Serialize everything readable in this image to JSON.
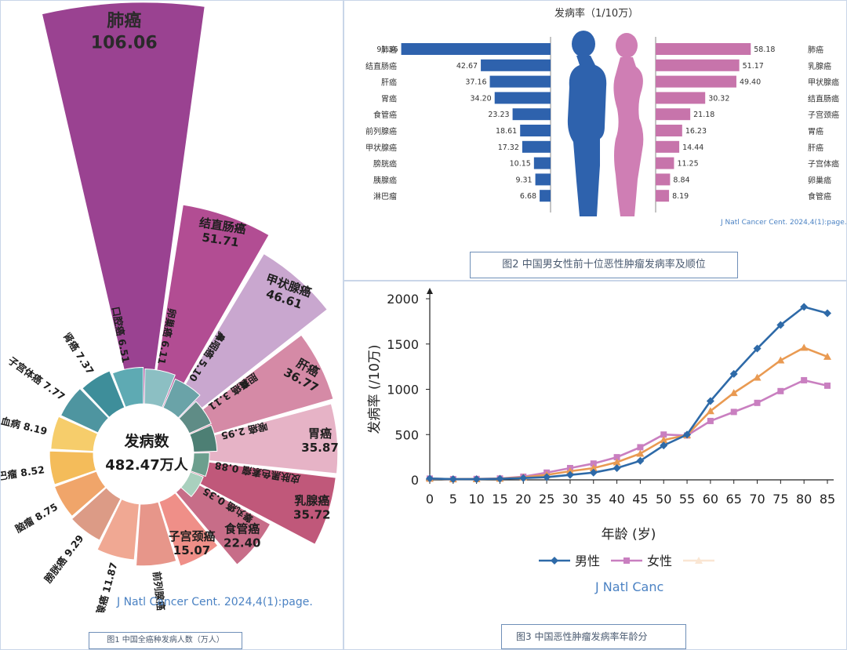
{
  "figure1": {
    "caption": "图1 中国全癌种发病人数（万人）",
    "source": "J Natl Cancer Cent. 2024,4(1):page.",
    "center_title": "发病数",
    "center_value": "482.47万人",
    "chart_data": {
      "type": "pie",
      "title": "",
      "unit": "万人",
      "categories": [
        "肺癌",
        "结直肠癌",
        "甲状腺癌",
        "肝癌",
        "胃癌",
        "乳腺癌",
        "食管癌",
        "子宫颈癌",
        "前列腺癌",
        "胰腺癌",
        "膀胱癌",
        "脑瘤",
        "淋巴瘤",
        "白血病",
        "子宫体癌",
        "肾癌",
        "口腔癌",
        "卵巢癌",
        "鼻咽癌",
        "胆囊癌",
        "喉癌",
        "皮肤黑色素瘤",
        "睾丸癌"
      ],
      "values": [
        106.06,
        51.71,
        46.61,
        36.77,
        35.87,
        35.72,
        22.4,
        15.07,
        13.42,
        11.87,
        9.29,
        8.75,
        8.52,
        8.19,
        7.77,
        7.37,
        6.51,
        6.11,
        5.1,
        3.11,
        2.95,
        0.88,
        0.35
      ],
      "value_labels": [
        "106.06",
        "51.71",
        "46.61",
        "36.77",
        "35.87",
        "35.72",
        "22.40",
        "15.07",
        "13.42",
        "11.87",
        "9.29",
        "8.75",
        "8.52",
        "8.19",
        "7.77",
        "7.37",
        "6.51",
        "6.11",
        "5.10",
        "3.11",
        "2.95",
        "0.88",
        "0.35"
      ],
      "colors": [
        "#9a4291",
        "#b24d93",
        "#c9a7cf",
        "#d58aa6",
        "#e6b3c6",
        "#c0587a",
        "#c76d88",
        "#ef8f88",
        "#e7968a",
        "#f0a893",
        "#dc9b86",
        "#f0a56a",
        "#f4bc5a",
        "#f6cd6b",
        "#4e95a0",
        "#3e8e9a",
        "#5eaab3",
        "#8cbfc3",
        "#6aa3a8",
        "#5f8c86",
        "#4d7f74",
        "#6c9f8e",
        "#a9d0be"
      ]
    }
  },
  "figure2": {
    "title": "发病率（1/10万）",
    "caption": "图2 中国男女性前十位恶性肿瘤发病率及顺位",
    "source": "J Natl Cancer Cent. 2024,4(1):page.",
    "chart_data": {
      "type": "bar",
      "title": "发病率（1/10万）",
      "xlim": [
        0,
        95
      ],
      "series": [
        {
          "name": "男性",
          "color": "#2e62ad",
          "categories": [
            "肺癌",
            "结直肠癌",
            "肝癌",
            "胃癌",
            "食管癌",
            "前列腺癌",
            "甲状腺癌",
            "膀胱癌",
            "胰腺癌",
            "淋巴瘤"
          ],
          "values": [
            91.36,
            42.67,
            37.16,
            34.2,
            23.23,
            18.61,
            17.32,
            10.15,
            9.31,
            6.68
          ],
          "value_labels": [
            "91.36",
            "42.67",
            "37.16",
            "34.20",
            "23.23",
            "18.61",
            "17.32",
            "10.15",
            "9.31",
            "6.68"
          ]
        },
        {
          "name": "女性",
          "color": "#c774ab",
          "categories": [
            "肺癌",
            "乳腺癌",
            "甲状腺癌",
            "结直肠癌",
            "子宫颈癌",
            "胃癌",
            "肝癌",
            "子宫体癌",
            "卵巢癌",
            "食管癌"
          ],
          "values": [
            58.18,
            51.17,
            49.4,
            30.32,
            21.18,
            16.23,
            14.44,
            11.25,
            8.84,
            8.19
          ],
          "value_labels": [
            "58.18",
            "51.17",
            "49.40",
            "30.32",
            "21.18",
            "16.23",
            "14.44",
            "11.25",
            "8.84",
            "8.19"
          ]
        }
      ]
    }
  },
  "figure3": {
    "caption": "图3 中国恶性肿瘤发病率年龄分",
    "source": "J Natl Canc",
    "chart_data": {
      "type": "line",
      "title": "",
      "xlabel": "年龄 (岁)",
      "ylabel": "发病率 (/10万)",
      "x": [
        0,
        5,
        10,
        15,
        20,
        25,
        30,
        35,
        40,
        45,
        50,
        55,
        60,
        65,
        70,
        75,
        80,
        85
      ],
      "x_tick_labels": [
        "0",
        "5",
        "10",
        "15",
        "20",
        "25",
        "30",
        "35",
        "40",
        "45",
        "50",
        "55",
        "60",
        "65",
        "70",
        "75",
        "80",
        "85"
      ],
      "xlim": [
        0,
        85
      ],
      "ylim": [
        0,
        2000
      ],
      "y_ticks": [
        0,
        500,
        1000,
        1500,
        2000
      ],
      "y_tick_labels": [
        "0",
        "500",
        "1000",
        "1500",
        "2000"
      ],
      "legend_position": "bottom",
      "series": [
        {
          "name": "男性",
          "color": "#2e6aa8",
          "marker": "diamond",
          "values": [
            15,
            8,
            8,
            12,
            20,
            30,
            55,
            80,
            130,
            210,
            380,
            500,
            870,
            1170,
            1450,
            1710,
            1910,
            1840
          ]
        },
        {
          "name": "女性",
          "color": "#c97fc0",
          "marker": "square",
          "values": [
            14,
            8,
            10,
            15,
            35,
            80,
            130,
            180,
            250,
            360,
            500,
            490,
            650,
            750,
            850,
            980,
            1100,
            1040
          ]
        },
        {
          "name": "",
          "color": "#e99a52",
          "marker": "triangle",
          "values": [
            14,
            8,
            9,
            14,
            28,
            55,
            95,
            130,
            195,
            290,
            440,
            495,
            760,
            960,
            1130,
            1320,
            1460,
            1360
          ]
        }
      ]
    }
  }
}
